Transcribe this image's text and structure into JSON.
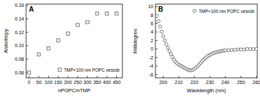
{
  "chart_data": [
    {
      "type": "scatter",
      "title": "A",
      "xlabel": "nPOPC/nTMP",
      "ylabel": "Anisotropy",
      "x": [
        0,
        50,
        100,
        150,
        200,
        250,
        300,
        350,
        400,
        450
      ],
      "series": [
        {
          "name": "TMP+100 nm POPC vesicle",
          "color": "#555555",
          "marker": "square",
          "values": [
            0.06,
            0.087,
            0.096,
            0.108,
            0.118,
            0.131,
            0.135,
            0.148,
            0.148,
            0.148
          ]
        }
      ],
      "xlim": [
        -15,
        480
      ],
      "xticks": [
        0,
        50,
        100,
        150,
        200,
        250,
        300,
        350,
        400,
        450
      ],
      "ylim": [
        0.052,
        0.162
      ],
      "yticks": [
        0.06,
        0.08,
        {
          "value": 0.1,
          "label": "0.10"
        },
        0.12,
        0.14,
        0.16
      ],
      "legend": "lower right",
      "grid": false
    },
    {
      "type": "scatter",
      "title": "B",
      "xlabel": "Wavelength (nm)",
      "ylabel": "Millidegree",
      "x": [
        196,
        197,
        198,
        199,
        200,
        201,
        202,
        203,
        204,
        205,
        206,
        207,
        208,
        209,
        210,
        211,
        212,
        213,
        214,
        215,
        216,
        217,
        218,
        219,
        220,
        221,
        222,
        223,
        224,
        225,
        226,
        227,
        228,
        229,
        230,
        231,
        232,
        233,
        234,
        235,
        236,
        237,
        238,
        239,
        240,
        242,
        244,
        246,
        248,
        250,
        252,
        254,
        256,
        258,
        260
      ],
      "series": [
        {
          "name": "TMP+100 nm POPC vesicle",
          "color": "#555555",
          "marker": "circle",
          "values": [
            7.8,
            6.6,
            5.3,
            4.1,
            3.0,
            2.0,
            1.1,
            0.3,
            -0.5,
            -1.2,
            -1.9,
            -2.5,
            -3.0,
            -3.4,
            -3.7,
            -3.9,
            -4.1,
            -4.3,
            -4.5,
            -4.7,
            -4.9,
            -5.0,
            -5.0,
            -4.9,
            -4.7,
            -4.4,
            -4.1,
            -3.7,
            -3.3,
            -2.9,
            -2.5,
            -2.2,
            -1.9,
            -1.6,
            -1.4,
            -1.2,
            -1.0,
            -0.9,
            -0.8,
            -0.7,
            -0.6,
            -0.5,
            -0.4,
            -0.4,
            -0.3,
            -0.3,
            -0.2,
            -0.2,
            -0.1,
            -0.1,
            -0.1,
            0,
            0,
            0,
            0
          ]
        }
      ],
      "xlim": [
        195,
        260.5
      ],
      "xticks": [
        200,
        210,
        220,
        230,
        240,
        250,
        260
      ],
      "ylim": [
        -6.8,
        10.6
      ],
      "yticks": [
        -6,
        -4,
        -2,
        0,
        2,
        4,
        6,
        8,
        10
      ],
      "legend": "upper right",
      "grid": false
    }
  ]
}
